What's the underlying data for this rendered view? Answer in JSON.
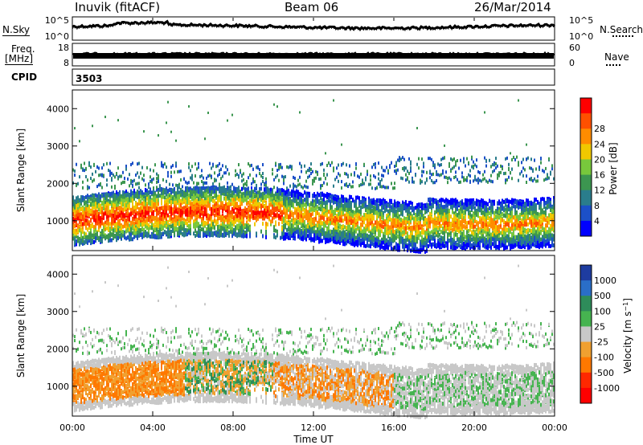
{
  "header": {
    "station": "Inuvik (fitACF)",
    "beam": "Beam 06",
    "date": "26/Mar/2014"
  },
  "side_labels": {
    "nsky": "N.Sky",
    "nsky_hi": "10^5",
    "nsky_lo": "10^0",
    "nsearch": "N.Search",
    "nsearch_hi": "10^5",
    "nsearch_lo": "10^0",
    "freq_top": "Freq.",
    "freq_unit": "[MHz]",
    "freq_hi": "18",
    "freq_lo": "8",
    "nave": "Nave",
    "nave_hi": "60",
    "nave_lo": "0",
    "cpid": "CPID",
    "cpid_value": "3503"
  },
  "chart_data": [
    {
      "type": "line",
      "panel": "noise",
      "series": [
        {
          "name": "N.Sky",
          "style": "solid",
          "color": "#000000"
        },
        {
          "name": "N.Search",
          "style": "dotted",
          "color": "#000000"
        }
      ]
    },
    {
      "type": "line",
      "panel": "frequency-nave",
      "series": [
        {
          "name": "Freq.",
          "style": "solid",
          "color": "#000000"
        },
        {
          "name": "Nave",
          "style": "dotted",
          "color": "#000000"
        }
      ]
    },
    {
      "type": "heatmap",
      "panel": "power",
      "ylabel": "Slant Range [km]",
      "ylim": [
        200,
        4500
      ],
      "yticks": [
        "1000",
        "2000",
        "3000",
        "4000"
      ],
      "colorbar": {
        "label": "Power [dB]",
        "ticks": [
          "4",
          "8",
          "12",
          "16",
          "20",
          "24",
          "28"
        ],
        "colors": [
          "#0000ff",
          "#1c50c8",
          "#2a7d8c",
          "#3c9650",
          "#78c83c",
          "#f0c800",
          "#ff8c00",
          "#ff5000",
          "#ff0000"
        ]
      }
    },
    {
      "type": "heatmap",
      "panel": "velocity",
      "ylabel": "Slant Range [km]",
      "ylim": [
        200,
        4500
      ],
      "yticks": [
        "1000",
        "2000",
        "3000",
        "4000"
      ],
      "colorbar": {
        "label": "Velocity [m s^-1]",
        "ticks": [
          "1000",
          "500",
          "100",
          "25",
          "-25",
          "-100",
          "-500",
          "-1000"
        ],
        "colors": [
          "#1e3ca0",
          "#2a6ec8",
          "#2e8c5a",
          "#46b450",
          "#c8c8c8",
          "#f0a030",
          "#ff7800",
          "#ff2800",
          "#ff0000"
        ]
      },
      "xlabel": "Time UT",
      "xticks": [
        "00:00",
        "04:00",
        "08:00",
        "12:00",
        "16:00",
        "20:00",
        "00:00"
      ]
    }
  ]
}
